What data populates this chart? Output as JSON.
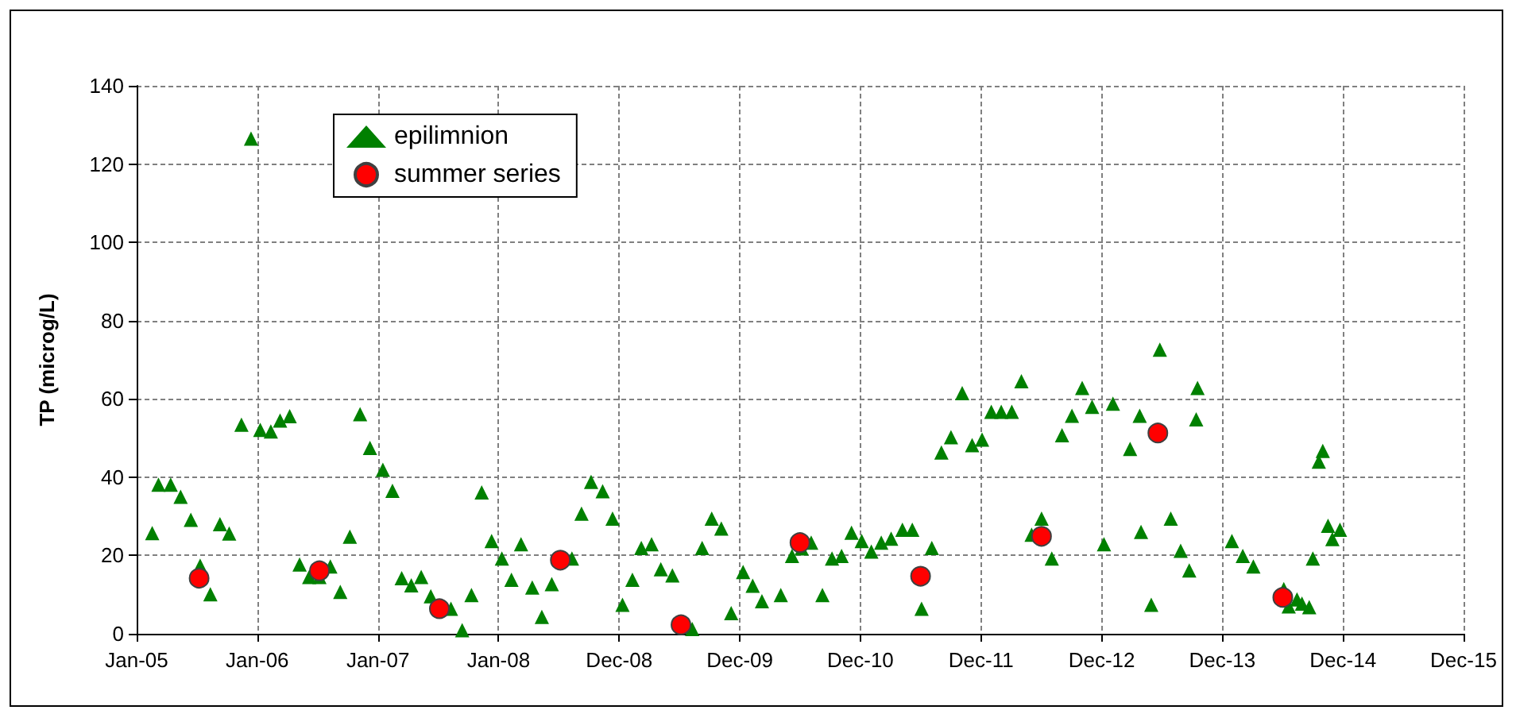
{
  "chart_data": {
    "type": "scatter",
    "ylabel": "TP (microg/L)",
    "xlim": [
      "2005-01-01",
      "2015-12-30"
    ],
    "xticks": [
      {
        "value": "2005-01-01",
        "label": "Jan-05"
      },
      {
        "value": "2006-01-01",
        "label": "Jan-06"
      },
      {
        "value": "2007-01-01",
        "label": "Jan-07"
      },
      {
        "value": "2008-01-01",
        "label": "Jan-08"
      },
      {
        "value": "2008-12-31",
        "label": "Dec-08"
      },
      {
        "value": "2009-12-31",
        "label": "Dec-09"
      },
      {
        "value": "2010-12-31",
        "label": "Dec-10"
      },
      {
        "value": "2011-12-31",
        "label": "Dec-11"
      },
      {
        "value": "2012-12-30",
        "label": "Dec-12"
      },
      {
        "value": "2013-12-30",
        "label": "Dec-13"
      },
      {
        "value": "2014-12-30",
        "label": "Dec-14"
      },
      {
        "value": "2015-12-30",
        "label": "Dec-15"
      }
    ],
    "ylim": [
      0,
      140
    ],
    "yticks": [
      0,
      20,
      40,
      60,
      80,
      100,
      120,
      140
    ],
    "grid": true,
    "legend": "top left",
    "series": [
      {
        "name": "epilimnion",
        "color": "#008000",
        "marker": "triangle",
        "x": [
          "2005-02-17",
          "2005-03-08",
          "2005-04-14",
          "2005-05-14",
          "2005-06-14",
          "2005-07-12",
          "2005-08-12",
          "2005-09-10",
          "2005-10-08",
          "2005-11-14",
          "2005-12-13",
          "2006-01-10",
          "2006-02-11",
          "2006-03-11",
          "2006-04-09",
          "2006-05-09",
          "2006-06-07",
          "2006-07-08",
          "2006-08-10",
          "2006-09-09",
          "2006-10-08",
          "2006-11-08",
          "2006-12-08",
          "2007-01-16",
          "2007-02-14",
          "2007-03-14",
          "2007-04-12",
          "2007-05-12",
          "2007-06-10",
          "2007-08-10",
          "2007-09-13",
          "2007-10-11",
          "2007-11-11",
          "2007-12-11",
          "2008-01-11",
          "2008-02-09",
          "2008-03-09",
          "2008-04-12",
          "2008-05-11",
          "2008-06-10",
          "2008-08-10",
          "2008-09-08",
          "2008-10-07",
          "2008-11-11",
          "2008-12-11",
          "2009-01-10",
          "2009-02-09",
          "2009-03-08",
          "2009-04-08",
          "2009-05-06",
          "2009-06-10",
          "2009-08-09",
          "2009-09-08",
          "2009-10-07",
          "2009-11-05",
          "2009-12-05",
          "2010-01-10",
          "2010-02-08",
          "2010-03-08",
          "2010-05-04",
          "2010-06-07",
          "2010-07-06",
          "2010-08-04",
          "2010-09-07",
          "2010-10-06",
          "2010-11-04",
          "2010-12-04",
          "2011-01-04",
          "2011-02-02",
          "2011-03-04",
          "2011-04-03",
          "2011-05-07",
          "2011-06-06",
          "2011-07-04",
          "2011-08-04",
          "2011-09-02",
          "2011-10-01",
          "2011-11-04",
          "2011-12-04",
          "2012-01-03",
          "2012-01-31",
          "2012-03-01",
          "2012-04-02",
          "2012-05-01",
          "2012-06-01",
          "2012-07-01",
          "2012-08-01",
          "2012-09-01",
          "2012-10-01",
          "2012-11-01",
          "2012-12-01",
          "2013-01-06",
          "2013-02-02",
          "2013-03-26",
          "2013-04-24",
          "2013-04-28",
          "2013-05-29",
          "2013-06-24",
          "2013-07-27",
          "2013-08-26",
          "2013-09-21",
          "2013-10-12",
          "2013-10-16",
          "2014-01-28",
          "2014-03-02",
          "2014-04-03",
          "2014-07-04",
          "2014-07-19",
          "2014-08-13",
          "2014-08-28",
          "2014-09-19",
          "2014-09-30",
          "2014-10-18",
          "2014-10-30",
          "2014-11-15",
          "2014-11-28",
          "2014-12-21"
        ],
        "values": [
          25.7,
          38.1,
          38.1,
          35.0,
          29.1,
          17.4,
          10.1,
          28.0,
          25.6,
          53.4,
          126.5,
          52.1,
          51.7,
          54.5,
          55.6,
          17.7,
          14.5,
          14.5,
          17.2,
          10.7,
          24.8,
          56.1,
          47.5,
          41.9,
          36.5,
          14.2,
          12.4,
          14.5,
          9.6,
          6.4,
          0.9,
          9.9,
          36.1,
          23.7,
          19.2,
          13.8,
          22.9,
          11.8,
          4.3,
          12.7,
          19.2,
          30.7,
          38.8,
          36.4,
          29.4,
          7.4,
          13.8,
          21.9,
          22.9,
          16.5,
          14.9,
          1.2,
          21.9,
          29.4,
          26.9,
          5.3,
          15.8,
          12.3,
          8.3,
          9.9,
          19.9,
          21.8,
          23.3,
          9.9,
          19.2,
          19.9,
          25.8,
          23.7,
          21.0,
          23.3,
          24.3,
          26.6,
          26.6,
          6.4,
          21.9,
          46.3,
          50.2,
          61.5,
          48.2,
          49.6,
          56.7,
          56.7,
          56.7,
          64.5,
          25.3,
          29.4,
          19.2,
          50.7,
          55.7,
          62.8,
          58.0,
          22.9,
          58.8,
          47.2,
          55.7,
          26.0,
          7.4,
          72.6,
          29.4,
          21.2,
          16.2,
          54.8,
          62.8,
          23.7,
          19.9,
          17.2,
          11.4,
          7.0,
          8.8,
          7.7,
          6.8,
          19.2,
          44.0,
          46.7,
          27.6,
          24.2,
          26.6
        ]
      },
      {
        "name": "summer series",
        "color": "#ff0000",
        "marker": "circle",
        "x": [
          "2005-07-09",
          "2006-07-08",
          "2007-07-06",
          "2008-07-06",
          "2009-07-06",
          "2010-07-01",
          "2011-07-01",
          "2012-07-01",
          "2013-06-18",
          "2014-07-01"
        ],
        "values": [
          14.2,
          16.1,
          6.4,
          18.8,
          2.3,
          23.3,
          14.7,
          24.9,
          51.3,
          9.3
        ]
      }
    ]
  }
}
